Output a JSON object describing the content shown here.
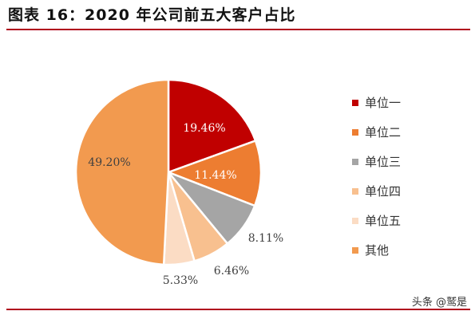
{
  "header": {
    "title": "图表 16：2020 年公司前五大客户占比"
  },
  "watermark": "头条 @鹫是",
  "chart_data": {
    "type": "pie",
    "title": "",
    "categories": [
      "单位一",
      "单位二",
      "单位三",
      "单位四",
      "单位五",
      "其他"
    ],
    "values": [
      19.46,
      11.44,
      8.11,
      6.46,
      5.33,
      49.2
    ],
    "value_labels": [
      "19.46%",
      "11.44%",
      "8.11%",
      "6.46%",
      "5.33%",
      "49.20%"
    ],
    "colors": [
      "#C00000",
      "#ED7D31",
      "#A5A5A5",
      "#F8C08F",
      "#FBDCC4",
      "#F29A4F"
    ],
    "legend_position": "right",
    "start_angle": "top-clockwise"
  }
}
